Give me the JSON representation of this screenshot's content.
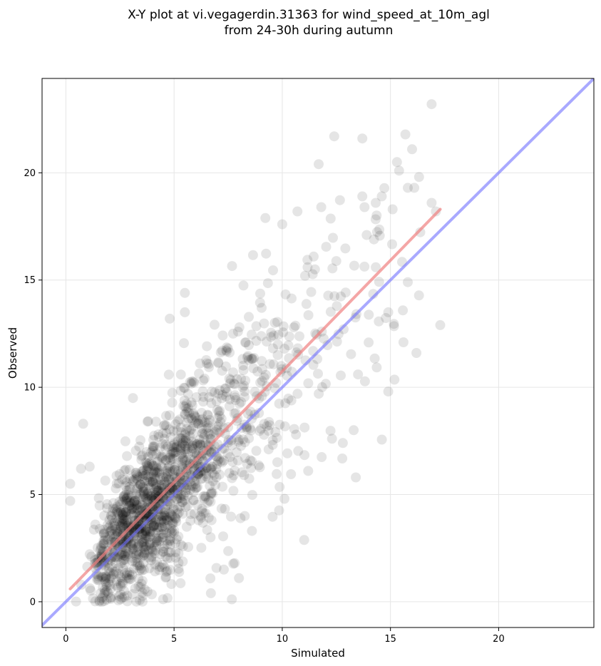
{
  "chart_data": {
    "type": "scatter",
    "title_lines": [
      "X-Y plot at vi.vegagerdin.31363 for wind_speed_at_10m_agl",
      "from 24-30h during autumn"
    ],
    "xlabel": "Simulated",
    "ylabel": "Observed",
    "xlim": [
      -1.1,
      24.4
    ],
    "ylim": [
      -1.2,
      24.4
    ],
    "xticks": [
      "0",
      "5",
      "10",
      "15",
      "20"
    ],
    "yticks": [
      "0",
      "5",
      "10",
      "15",
      "20"
    ],
    "grid": true,
    "legend": "none",
    "point_color": "#000000",
    "point_alpha": 0.1,
    "point_count": 1500,
    "regression_line": {
      "x": [
        0.2,
        17.3
      ],
      "y": [
        0.6,
        18.3
      ],
      "color": "#f08080"
    },
    "identity_line": {
      "x": [
        -1.1,
        24.4
      ],
      "y": [
        -1.1,
        24.4
      ],
      "color": "#7070ff"
    },
    "notable_points": [
      {
        "x": 16.9,
        "y": 23.2
      },
      {
        "x": 12.4,
        "y": 21.7
      },
      {
        "x": 13.7,
        "y": 21.6
      },
      {
        "x": 16.0,
        "y": 21.1
      },
      {
        "x": 15.3,
        "y": 20.5
      },
      {
        "x": 15.4,
        "y": 20.1
      },
      {
        "x": 15.8,
        "y": 19.3
      },
      {
        "x": 16.1,
        "y": 19.3
      },
      {
        "x": 13.7,
        "y": 18.9
      },
      {
        "x": 14.6,
        "y": 18.9
      },
      {
        "x": 16.9,
        "y": 18.6
      },
      {
        "x": 13.8,
        "y": 18.4
      },
      {
        "x": 11.8,
        "y": 18.4
      },
      {
        "x": 15.1,
        "y": 18.3
      },
      {
        "x": 17.1,
        "y": 18.2
      },
      {
        "x": 10.7,
        "y": 18.2
      },
      {
        "x": 10.0,
        "y": 17.6
      },
      {
        "x": 13.9,
        "y": 17.1
      },
      {
        "x": 15.8,
        "y": 14.9
      },
      {
        "x": 14.9,
        "y": 13.5
      },
      {
        "x": 17.3,
        "y": 12.9
      },
      {
        "x": 15.6,
        "y": 12.1
      },
      {
        "x": 16.2,
        "y": 11.6
      },
      {
        "x": 14.9,
        "y": 9.8
      },
      {
        "x": 13.4,
        "y": 5.8
      },
      {
        "x": 11.2,
        "y": 6.1
      },
      {
        "x": 5.5,
        "y": 14.4
      },
      {
        "x": 4.8,
        "y": 13.2
      },
      {
        "x": 5.5,
        "y": 13.5
      },
      {
        "x": 0.8,
        "y": 8.3
      },
      {
        "x": 3.1,
        "y": 9.5
      },
      {
        "x": 0.2,
        "y": 5.5
      },
      {
        "x": 0.2,
        "y": 4.7
      },
      {
        "x": 1.1,
        "y": 6.3
      },
      {
        "x": 0.7,
        "y": 6.2
      },
      {
        "x": 13.3,
        "y": 8.0
      },
      {
        "x": 12.8,
        "y": 7.4
      },
      {
        "x": 12.3,
        "y": 7.6
      },
      {
        "x": 13.5,
        "y": 10.6
      },
      {
        "x": 8.0,
        "y": 1.1
      },
      {
        "x": 8.6,
        "y": 3.3
      },
      {
        "x": 7.8,
        "y": 1.8
      },
      {
        "x": 10.1,
        "y": 4.8
      },
      {
        "x": 7.3,
        "y": 1.5
      },
      {
        "x": 6.7,
        "y": 0.4
      }
    ]
  }
}
